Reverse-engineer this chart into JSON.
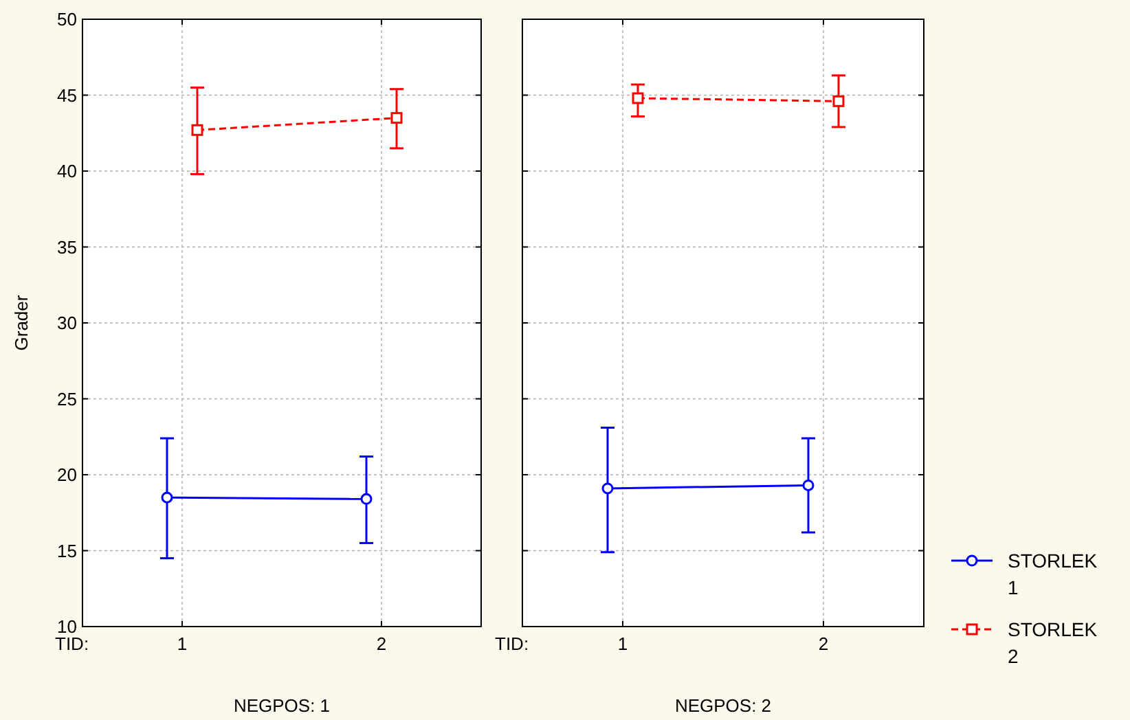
{
  "chart_data": [
    {
      "type": "line",
      "xlabel": "NEGPOS: 1",
      "ylabel": "Grader",
      "categories": [
        "1",
        "2"
      ],
      "ylim": [
        10,
        50
      ],
      "yticks": [
        10,
        15,
        20,
        25,
        30,
        35,
        40,
        45,
        50
      ],
      "grid": true,
      "annotations": [
        "TID:"
      ],
      "series": [
        {
          "color": "#0000ff",
          "marker": "circle",
          "line_style": "solid",
          "values": [
            18.5,
            18.4
          ],
          "errors": [
            [
              14.5,
              22.4
            ],
            [
              15.5,
              21.2
            ]
          ]
        },
        {
          "color": "#ff0000",
          "marker": "square",
          "line_style": "dashed",
          "values": [
            42.7,
            43.5
          ],
          "errors": [
            [
              39.8,
              45.5
            ],
            [
              41.5,
              45.4
            ]
          ]
        }
      ]
    },
    {
      "type": "line",
      "xlabel": "NEGPOS: 2",
      "categories": [
        "1",
        "2"
      ],
      "ylim": [
        10,
        50
      ],
      "yticks": [
        10,
        15,
        20,
        25,
        30,
        35,
        40,
        45,
        50
      ],
      "grid": true,
      "legend": "right",
      "tick_labels": "x",
      "annotations": [
        "TID:"
      ],
      "series": [
        {
          "name": "STORLEK 1",
          "color": "#0000ff",
          "marker": "circle",
          "line_style": "solid",
          "values": [
            19.1,
            19.3
          ],
          "errors": [
            [
              14.9,
              23.1
            ],
            [
              16.2,
              22.4
            ]
          ]
        },
        {
          "name": "STORLEK 2",
          "color": "#ff0000",
          "marker": "square",
          "line_style": "dashed",
          "values": [
            44.8,
            44.6
          ],
          "errors": [
            [
              43.6,
              45.7
            ],
            [
              42.9,
              46.3
            ]
          ]
        }
      ]
    }
  ]
}
